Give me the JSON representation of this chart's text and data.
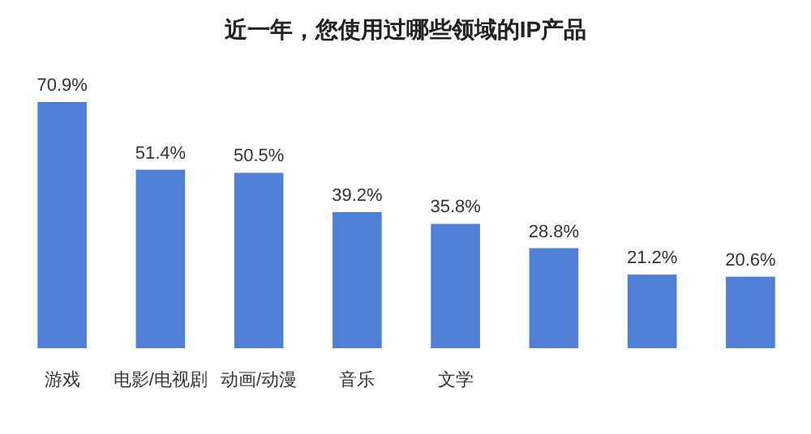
{
  "chart_data": {
    "type": "bar",
    "title": "近一年，您使用过哪些领域的IP产品",
    "categories": [
      "游戏",
      "电影/电视剧",
      "动画/动漫",
      "音乐",
      "文学",
      null,
      null,
      null
    ],
    "values": [
      70.9,
      51.4,
      50.5,
      39.2,
      35.8,
      28.8,
      21.2,
      20.6
    ],
    "value_labels": [
      "70.9%",
      "51.4%",
      "50.5%",
      "39.2%",
      "35.8%",
      "28.8%",
      "21.2%",
      "20.6%"
    ],
    "color": "#4f7fd6"
  }
}
